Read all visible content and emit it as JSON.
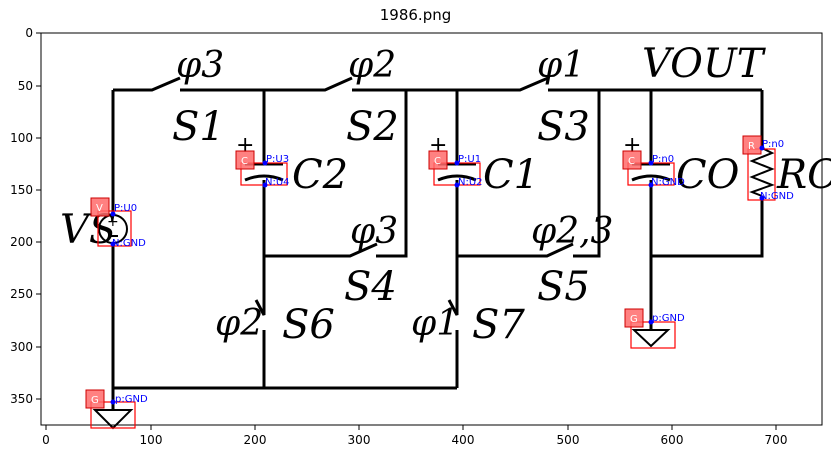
{
  "title": "1986.png",
  "axes": {
    "x_ticks": [
      "0",
      "100",
      "200",
      "300",
      "400",
      "500",
      "600",
      "700"
    ],
    "y_ticks": [
      "0",
      "50",
      "100",
      "150",
      "200",
      "250",
      "300",
      "350"
    ]
  },
  "circuit": {
    "phases": {
      "phi3_top": "φ3",
      "phi2_top": "φ2",
      "phi1_top": "φ1",
      "phi3_mid": "φ3",
      "phi23_mid": "φ2,3",
      "phi2_bottom": "φ2",
      "phi1_bottom": "φ1"
    },
    "switches": {
      "s1": "S1",
      "s2": "S2",
      "s3": "S3",
      "s4": "S4",
      "s5": "S5",
      "s6": "S6",
      "s7": "S7"
    },
    "labels": {
      "vout": "VOUT",
      "vs": "VS",
      "c2": "C2",
      "c1": "C1",
      "co": "CO",
      "ro": "RO"
    }
  },
  "annotations": [
    {
      "tag": "V",
      "pins": [
        "P:U0",
        "N:GND"
      ]
    },
    {
      "tag": "C",
      "pins": [
        "P:U3",
        "N:U4"
      ]
    },
    {
      "tag": "C",
      "pins": [
        "P:U1",
        "N:U2"
      ]
    },
    {
      "tag": "C",
      "pins": [
        "P:n0",
        "N:GND"
      ]
    },
    {
      "tag": "R",
      "pins": [
        "P:n0",
        "N:GND"
      ]
    },
    {
      "tag": "G",
      "pins": [
        "p:GND"
      ]
    },
    {
      "tag": "G",
      "pins": [
        "p:GND"
      ]
    }
  ]
}
